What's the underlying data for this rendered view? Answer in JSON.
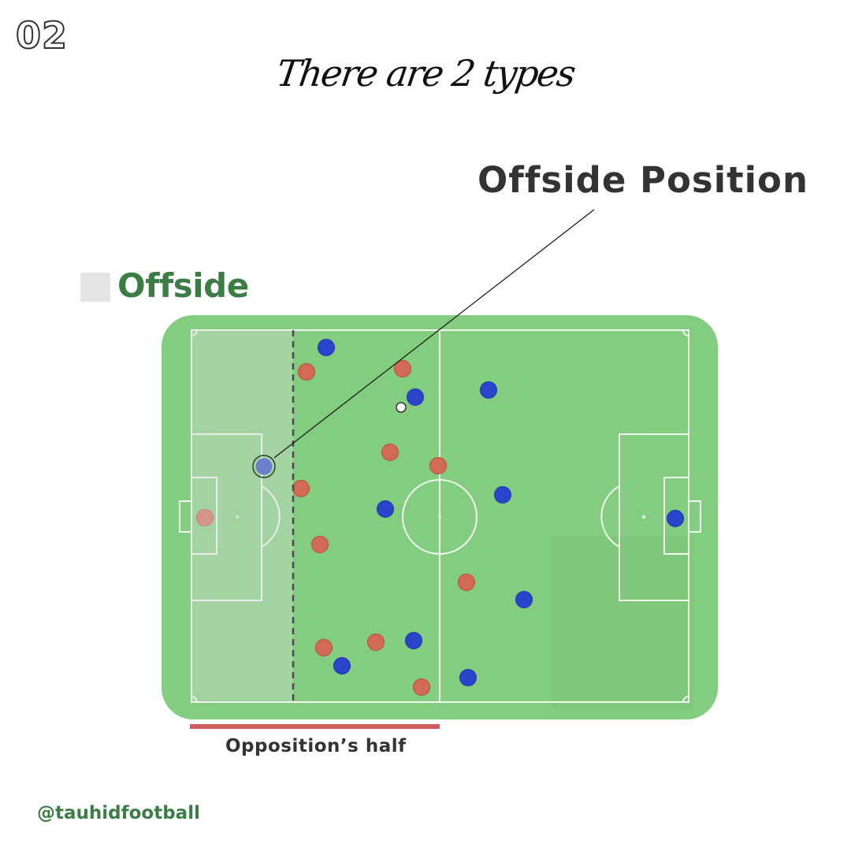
{
  "page_number": "02",
  "subtitle": "There are 2 types",
  "callout": {
    "title": "Offside Position"
  },
  "legend": {
    "label": "Offside",
    "swatch_color": "#e5e5e5"
  },
  "pitch": {
    "grass_color": "#82cd7f",
    "line_color": "#f2f7ee",
    "offside_zone_color": "#dcdcdc",
    "red_team_color": "#d26a55",
    "blue_team_color": "#2a44cc",
    "offside_player_color": "#6a7ecb",
    "ball_color": "#ffffff"
  },
  "opposition_half": {
    "label": "Opposition’s half",
    "bar_color": "#cf5b5b"
  },
  "handle": "@tauhidfootball",
  "colors": {
    "heading_green": "#3c7d45",
    "dark_text": "#333333"
  }
}
